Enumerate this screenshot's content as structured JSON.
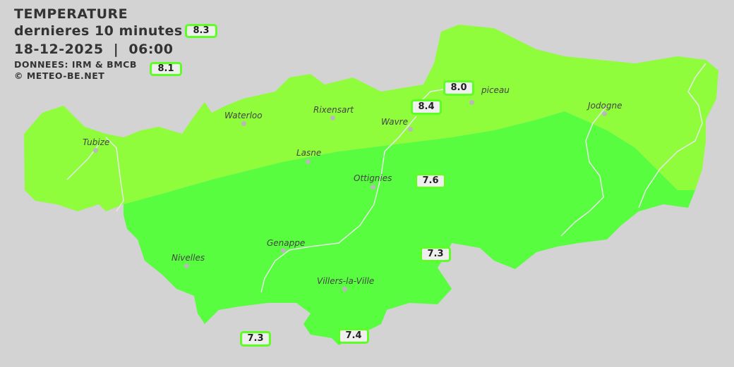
{
  "header": {
    "title": "TEMPERATURE",
    "subtitle": "dernieres 10 minutes",
    "datetime": "18-12-2025  |  06:00",
    "source": "DONNEES: IRM & BMCB",
    "copyright": "© METEO-BE.NET"
  },
  "colors": {
    "background": "#d3d3d3",
    "zone_warm": "#8ffc3c",
    "zone_cool": "#58fd3f",
    "label_border": "#5cff22",
    "rivers": "#e8e8e8"
  },
  "cities": [
    "Waterloo",
    "Rixensart",
    "Wavre",
    "Tubize",
    "Lasne",
    "Ottignies",
    "Genappe",
    "Nivelles",
    "Villers-la-Ville",
    "Jodogne",
    "piceau"
  ],
  "stations": [
    "8.3",
    "8.1",
    "8.0",
    "8.4",
    "7.6",
    "7.3",
    "7.3",
    "7.4"
  ]
}
